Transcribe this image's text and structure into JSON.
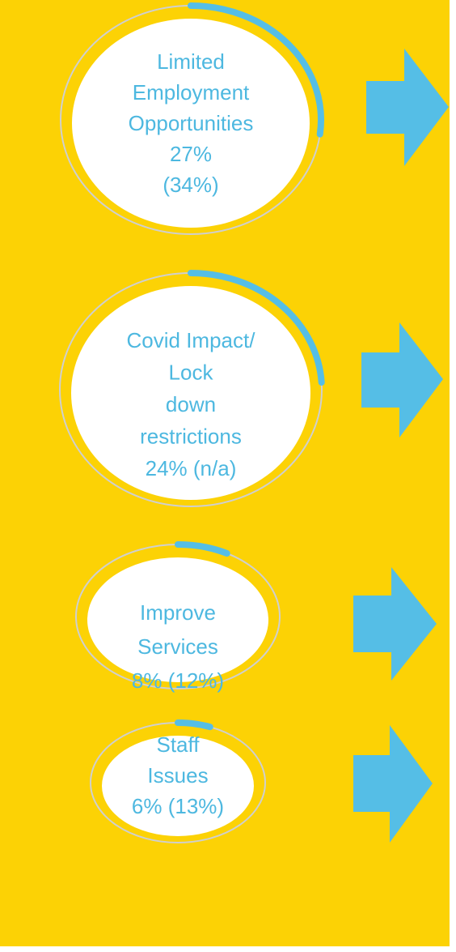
{
  "items": [
    {
      "lines": [
        "Limited",
        "Employment",
        "Opportunities",
        "27%",
        "(34%)"
      ],
      "value": 27
    },
    {
      "lines": [
        "Covid Impact/",
        "Lock",
        "down",
        "restrictions",
        "24% (n/a)"
      ],
      "value": 24
    },
    {
      "lines": [
        "Improve",
        "Services",
        "8% (12%)"
      ],
      "value": 8
    },
    {
      "lines": [
        "Staff",
        "Issues",
        "6% (13%)"
      ],
      "value": 6
    }
  ]
}
